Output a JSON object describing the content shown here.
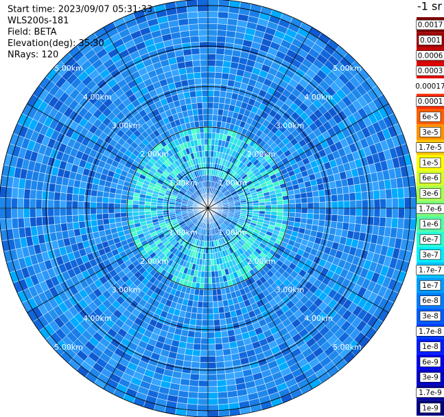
{
  "header": {
    "lines": [
      "Start time: 2023/09/07 05:31:33",
      "WLS200s-181",
      "Field: BETA",
      "Elevation(deg): 35.30",
      "NRays: 120"
    ]
  },
  "rings": [
    "1.00km",
    "2.00km",
    "3.00km",
    "4.00km",
    "5.00km"
  ],
  "colorbar": {
    "unit": "-1 sr",
    "levels": [
      {
        "label": "0.0017",
        "color": "#800000"
      },
      {
        "label": "0.001",
        "color": "#a30000"
      },
      {
        "label": "0.0006",
        "color": "#c80000"
      },
      {
        "label": "0.0003",
        "color": "#ea0000"
      },
      {
        "label": "0.00017",
        "color": "#ffffff"
      },
      {
        "label": "0.0001",
        "color": "#ff2a00"
      },
      {
        "label": "6e-5",
        "color": "#ff6000"
      },
      {
        "label": "3e-5",
        "color": "#ff9400"
      },
      {
        "label": "1.7e-5",
        "color": "#ffc400"
      },
      {
        "label": "1e-5",
        "color": "#ffff00"
      },
      {
        "label": "6e-6",
        "color": "#d4ff26"
      },
      {
        "label": "3e-6",
        "color": "#a6ff52"
      },
      {
        "label": "1.7e-6",
        "color": "#7cff7a"
      },
      {
        "label": "1e-6",
        "color": "#52ffa6"
      },
      {
        "label": "6e-7",
        "color": "#26ffd4"
      },
      {
        "label": "3e-7",
        "color": "#00eeff"
      },
      {
        "label": "1.7e-7",
        "color": "#00c4ff"
      },
      {
        "label": "1e-7",
        "color": "#009cff"
      },
      {
        "label": "6e-8",
        "color": "#007cff"
      },
      {
        "label": "3e-8",
        "color": "#005cff"
      },
      {
        "label": "1.7e-8",
        "color": "#003cff"
      },
      {
        "label": "1e-8",
        "color": "#001cff"
      },
      {
        "label": "6e-9",
        "color": "#0000f0"
      },
      {
        "label": "3e-9",
        "color": "#0000c8"
      },
      {
        "label": "1.7e-9",
        "color": "#0000a0"
      },
      {
        "label": "1e-9",
        "color": "#000080"
      }
    ]
  }
}
